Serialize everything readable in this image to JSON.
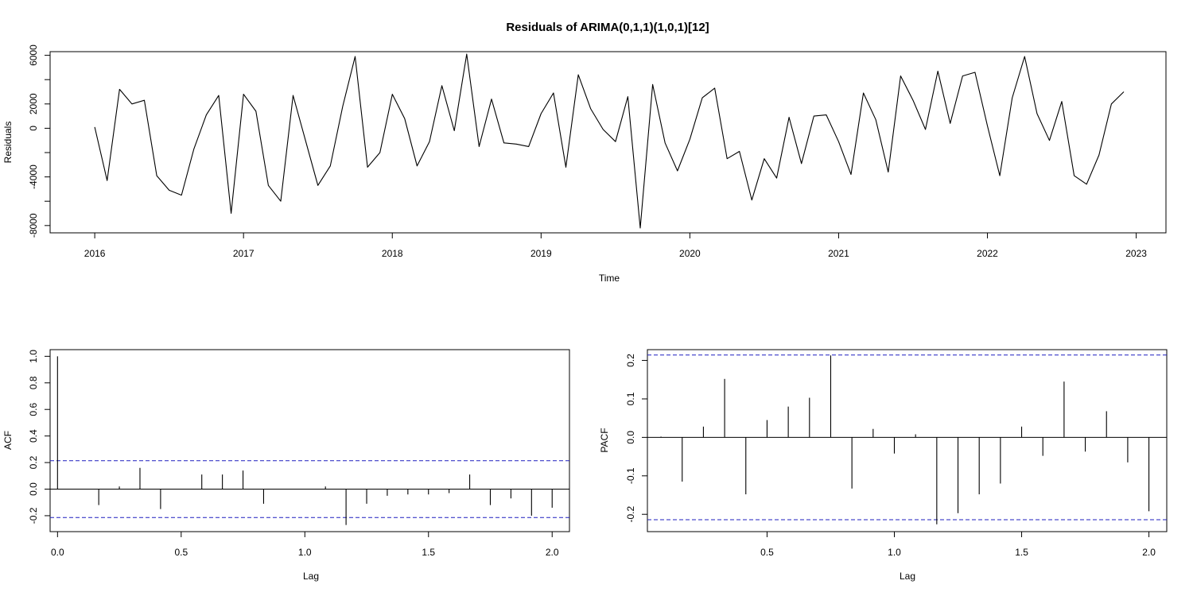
{
  "title": "Residuals of ARIMA(0,1,1)(1,0,1)[12]",
  "colors": {
    "line": "#000000",
    "ci": "#1f1fbf",
    "frame": "#000000"
  },
  "chart_data": [
    {
      "type": "line",
      "xlabel": "Time",
      "ylabel": "Residuals",
      "xlim": [
        2015.7,
        2023.2
      ],
      "ylim": [
        -8600,
        6300
      ],
      "x_ticks": [
        2016,
        2017,
        2018,
        2019,
        2020,
        2021,
        2022,
        2023
      ],
      "x_tick_labels": [
        "2016",
        "2017",
        "2018",
        "2019",
        "2020",
        "2021",
        "2022",
        "2023"
      ],
      "y_ticks": [
        -8000,
        -4000,
        0,
        2000,
        6000
      ],
      "y_tick_labels": [
        "-8000",
        "-4000",
        "0",
        "2000",
        "6000"
      ],
      "y_grid_values": [
        -8000,
        -6000,
        -4000,
        -2000,
        0,
        2000,
        4000,
        6000
      ],
      "x_start": 2016,
      "x_step": 0.083333,
      "values": [
        100,
        -4300,
        3200,
        2000,
        2300,
        -3900,
        -5100,
        -5500,
        -1700,
        1100,
        2700,
        -7000,
        2800,
        1400,
        -4700,
        -6000,
        2700,
        -1000,
        -4700,
        -3100,
        1800,
        5900,
        -3200,
        -2000,
        2800,
        800,
        -3100,
        -1100,
        3500,
        -200,
        6100,
        -1500,
        2400,
        -1200,
        -1300,
        -1500,
        1200,
        2900,
        -3200,
        4400,
        1600,
        -100,
        -1100,
        2600,
        -8200,
        3600,
        -1200,
        -3500,
        -900,
        2500,
        3300,
        -2500,
        -1900,
        -5900,
        -2500,
        -4100,
        900,
        -2900,
        1000,
        1100,
        -1100,
        -3800,
        2900,
        700,
        -3600,
        4300,
        2300,
        -100,
        4700,
        400,
        4300,
        4600,
        200,
        -3900,
        2500,
        5900,
        1200,
        -1000,
        2200,
        -3900,
        -4600,
        -2200,
        2000,
        3000
      ]
    },
    {
      "type": "bar",
      "xlabel": "Lag",
      "ylabel": "ACF",
      "xlim": [
        -0.03,
        2.07
      ],
      "ylim": [
        -0.32,
        1.05
      ],
      "x_ticks": [
        0.0,
        0.5,
        1.0,
        1.5,
        2.0
      ],
      "x_tick_labels": [
        "0.0",
        "0.5",
        "1.0",
        "1.5",
        "2.0"
      ],
      "y_ticks": [
        -0.2,
        0.0,
        0.2,
        0.4,
        0.6,
        0.8,
        1.0
      ],
      "y_tick_labels": [
        "-0.2",
        "0.0",
        "0.2",
        "0.4",
        "0.6",
        "0.8",
        "1.0"
      ],
      "ci": 0.214,
      "x_start": 0.0,
      "x_step": 0.083333,
      "values": [
        1.0,
        0.0,
        -0.12,
        0.02,
        0.16,
        -0.15,
        0.0,
        0.11,
        0.11,
        0.14,
        -0.11,
        0.0,
        0.0,
        0.02,
        -0.27,
        -0.11,
        -0.05,
        -0.04,
        -0.04,
        -0.03,
        0.11,
        -0.12,
        -0.07,
        -0.2,
        -0.14
      ]
    },
    {
      "type": "bar",
      "xlabel": "Lag",
      "ylabel": "PACF",
      "xlim": [
        0.03,
        2.07
      ],
      "ylim": [
        -0.245,
        0.228
      ],
      "x_ticks": [
        0.5,
        1.0,
        1.5,
        2.0
      ],
      "x_tick_labels": [
        "0.5",
        "1.0",
        "1.5",
        "2.0"
      ],
      "y_ticks": [
        -0.2,
        -0.1,
        0.0,
        0.1,
        0.2
      ],
      "y_tick_labels": [
        "-0.2",
        "-0.1",
        "0.0",
        "0.1",
        "0.2"
      ],
      "ci": 0.214,
      "x_start": 0.083333,
      "x_step": 0.083333,
      "values": [
        0.002,
        -0.115,
        0.028,
        0.152,
        -0.148,
        0.045,
        0.08,
        0.103,
        0.213,
        -0.133,
        0.022,
        -0.042,
        0.008,
        -0.226,
        -0.197,
        -0.148,
        -0.12,
        0.028,
        -0.048,
        0.145,
        -0.037,
        0.068,
        -0.065,
        -0.192
      ]
    }
  ]
}
